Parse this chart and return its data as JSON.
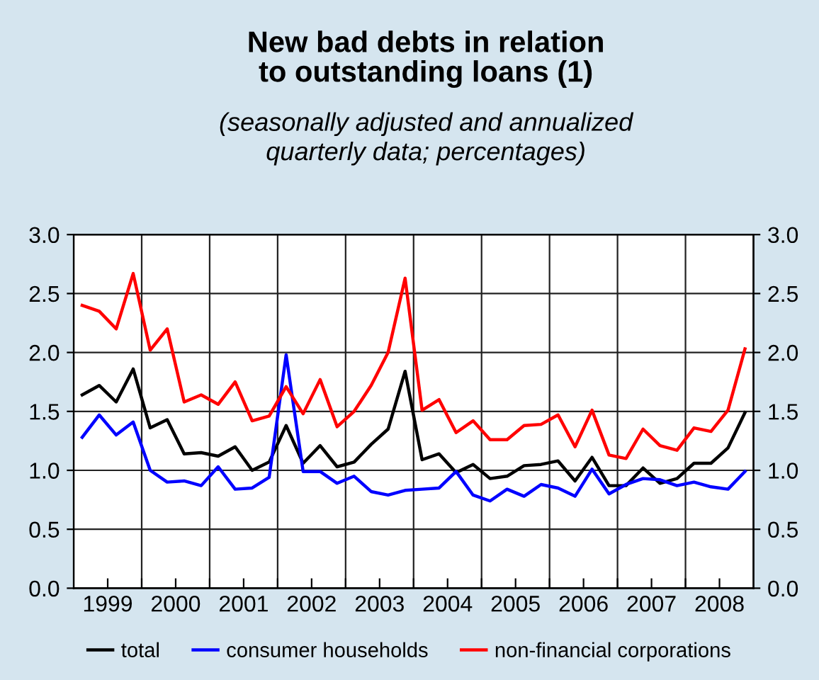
{
  "chart_data": {
    "type": "line",
    "title": "New bad debts in relation\nto outstanding loans (1)",
    "subtitle": "(seasonally adjusted and annualized\nquarterly data; percentages)",
    "x": [
      1998.625,
      1998.875,
      1999.125,
      1999.375,
      1999.625,
      1999.875,
      2000.125,
      2000.375,
      2000.625,
      2000.875,
      2001.125,
      2001.375,
      2001.625,
      2001.875,
      2002.125,
      2002.375,
      2002.625,
      2002.875,
      2003.125,
      2003.375,
      2003.625,
      2003.875,
      2004.125,
      2004.375,
      2004.625,
      2004.875,
      2005.125,
      2005.375,
      2005.625,
      2005.875,
      2006.125,
      2006.375,
      2006.625,
      2006.875,
      2007.125,
      2007.375,
      2007.625,
      2007.875,
      2008.125,
      2008.375
    ],
    "series": [
      {
        "name": "total",
        "color": "#000000",
        "values": [
          1.64,
          1.72,
          1.58,
          1.86,
          1.36,
          1.43,
          1.14,
          1.15,
          1.12,
          1.2,
          1.0,
          1.07,
          1.38,
          1.06,
          1.21,
          1.03,
          1.07,
          1.22,
          1.35,
          1.84,
          1.09,
          1.14,
          0.98,
          1.05,
          0.93,
          0.95,
          1.04,
          1.05,
          1.08,
          0.91,
          1.11,
          0.87,
          0.87,
          1.02,
          0.89,
          0.93,
          1.06,
          1.06,
          1.19,
          1.49
        ]
      },
      {
        "name": "consumer households",
        "color": "#0000ff",
        "values": [
          1.28,
          1.47,
          1.3,
          1.41,
          1.0,
          0.9,
          0.91,
          0.87,
          1.03,
          0.84,
          0.85,
          0.94,
          1.98,
          0.99,
          0.99,
          0.89,
          0.95,
          0.82,
          0.79,
          0.83,
          0.84,
          0.85,
          0.99,
          0.79,
          0.74,
          0.84,
          0.78,
          0.88,
          0.85,
          0.78,
          1.01,
          0.8,
          0.88,
          0.93,
          0.92,
          0.87,
          0.9,
          0.86,
          0.84,
          0.99
        ]
      },
      {
        "name": "non-financial corporations",
        "color": "#ff0000",
        "values": [
          2.4,
          2.35,
          2.2,
          2.67,
          2.02,
          2.2,
          1.58,
          1.64,
          1.56,
          1.75,
          1.42,
          1.46,
          1.71,
          1.48,
          1.77,
          1.37,
          1.5,
          1.72,
          2.0,
          2.63,
          1.51,
          1.6,
          1.32,
          1.42,
          1.26,
          1.26,
          1.38,
          1.39,
          1.47,
          1.2,
          1.51,
          1.13,
          1.1,
          1.35,
          1.21,
          1.17,
          1.36,
          1.33,
          1.51,
          2.03
        ]
      }
    ],
    "xlim": [
      1998.5,
      2008.5
    ],
    "xticks": [
      1999,
      2000,
      2001,
      2002,
      2003,
      2004,
      2005,
      2006,
      2007,
      2008,
      {
        "value": 1999.5,
        "label": null
      },
      {
        "value": 2000.5,
        "label": null
      },
      {
        "value": 2001.5,
        "label": null
      },
      {
        "value": 2002.5,
        "label": null
      },
      {
        "value": 2003.5,
        "label": null
      },
      {
        "value": 2004.5,
        "label": null
      },
      {
        "value": 2005.5,
        "label": null
      },
      {
        "value": 2006.5,
        "label": null
      },
      {
        "value": 2007.5,
        "label": null
      }
    ],
    "ylim": [
      0,
      3.0
    ],
    "yticks": [
      {
        "value": 0,
        "label": "0.0"
      },
      {
        "value": 0.5,
        "label": "0.5"
      },
      {
        "value": 1.0,
        "label": "1.0"
      },
      {
        "value": 1.5,
        "label": "1.5"
      },
      {
        "value": 2.0,
        "label": "2.0"
      },
      {
        "value": 2.5,
        "label": "2.5"
      },
      {
        "value": 3.0,
        "label": "3.0"
      }
    ],
    "y2lim": [
      0,
      3.0
    ],
    "y2ticks": [
      {
        "value": 0,
        "label": "0.0"
      },
      {
        "value": 0.5,
        "label": "0.5"
      },
      {
        "value": 1.0,
        "label": "1.0"
      },
      {
        "value": 1.5,
        "label": "1.5"
      },
      {
        "value": 2.0,
        "label": "2.0"
      },
      {
        "value": 2.5,
        "label": "2.5"
      },
      {
        "value": 3.0,
        "label": "3.0"
      }
    ],
    "grid": true,
    "legend": "bottom",
    "marker": "none",
    "line_style": "solid"
  }
}
